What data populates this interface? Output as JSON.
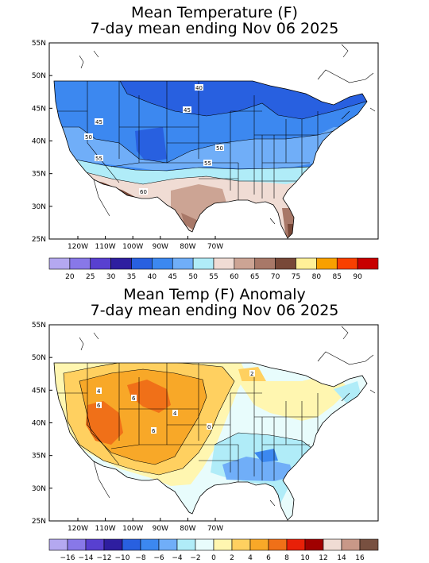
{
  "panel1": {
    "title_line1": "Mean Temperature (F)",
    "title_line2": "7-day mean ending Nov 06 2025",
    "lat_labels": [
      "55N",
      "50N",
      "45N",
      "40N",
      "35N",
      "30N",
      "25N"
    ],
    "lon_labels": [
      "120W",
      "110W",
      "100W",
      "90W",
      "80W",
      "70W"
    ],
    "contour_labels": [
      "40",
      "45",
      "45",
      "50",
      "50",
      "55",
      "55",
      "60"
    ],
    "legend_values": [
      "20",
      "25",
      "30",
      "35",
      "40",
      "45",
      "50",
      "55",
      "60",
      "65",
      "70",
      "75",
      "80",
      "85",
      "90"
    ],
    "legend_colors": [
      "#b4a8f0",
      "#8878e8",
      "#5840d0",
      "#2e1ea0",
      "#2860e0",
      "#3c88f0",
      "#70aef8",
      "#b0ecf8",
      "#f0dcd4",
      "#cca494",
      "#a87868",
      "#784838",
      "#fff098",
      "#f8a000",
      "#f84000",
      "#c80000"
    ]
  },
  "panel2": {
    "title_line1": "Mean Temp (F) Anomaly",
    "title_line2": "7-day mean ending Nov 06 2025",
    "lat_labels": [
      "55N",
      "50N",
      "45N",
      "40N",
      "35N",
      "30N",
      "25N"
    ],
    "lon_labels": [
      "120W",
      "110W",
      "100W",
      "90W",
      "80W",
      "70W"
    ],
    "contour_labels": [
      "4",
      "6",
      "6",
      "6",
      "4",
      "2",
      "0",
      "2"
    ],
    "legend_values": [
      "−16",
      "−14",
      "−12",
      "−10",
      "−8",
      "−6",
      "−4",
      "−2",
      "0",
      "2",
      "4",
      "6",
      "8",
      "10",
      "12",
      "14",
      "16"
    ],
    "legend_colors": [
      "#b4a8f0",
      "#8878e8",
      "#5840d0",
      "#2e1ea0",
      "#2860e0",
      "#3c88f0",
      "#70aef8",
      "#b0ecf8",
      "#e8fcfc",
      "#fff6b0",
      "#ffd060",
      "#f8a828",
      "#f07018",
      "#e82008",
      "#a00000",
      "#f0dcd4",
      "#c89888",
      "#785040"
    ]
  }
}
